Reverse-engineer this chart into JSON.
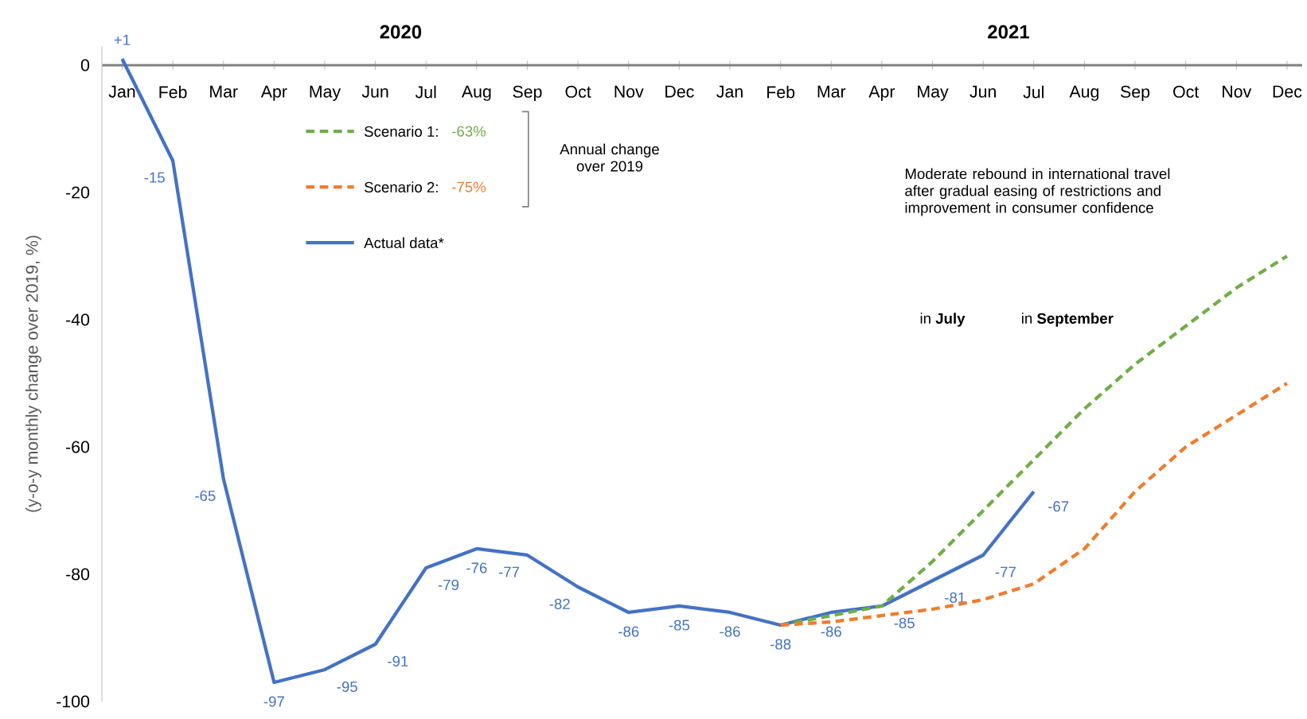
{
  "chart_data": {
    "type": "line",
    "categories": [
      "Jan",
      "Feb",
      "Mar",
      "Apr",
      "May",
      "Jun",
      "Jul",
      "Aug",
      "Sep",
      "Oct",
      "Nov",
      "Dec",
      "Jan",
      "Feb",
      "Mar",
      "Apr",
      "May",
      "Jun",
      "Jul",
      "Aug",
      "Sep",
      "Oct",
      "Nov",
      "Dec"
    ],
    "ylabel": "(y-o-y monthly change over 2019, %)",
    "ylim": [
      -100,
      3
    ],
    "yticks": [
      0,
      -20,
      -40,
      -60,
      -80,
      -100
    ],
    "series": [
      {
        "name": "Scenario 1:",
        "color": "#70ad47",
        "line_style": "dashed",
        "values": [
          null,
          null,
          null,
          null,
          null,
          null,
          null,
          null,
          null,
          null,
          null,
          null,
          null,
          -88,
          -86.5,
          -85,
          -78,
          -70,
          -62,
          -54,
          -47,
          -41,
          -35,
          -30
        ]
      },
      {
        "name": "Scenario 2:",
        "color": "#ed7d31",
        "line_style": "dashed",
        "values": [
          null,
          null,
          null,
          null,
          null,
          null,
          null,
          null,
          null,
          null,
          null,
          null,
          null,
          -88,
          -87.5,
          -86.5,
          -85.5,
          -84,
          -81.5,
          -76,
          -67,
          -60,
          -55,
          -50
        ]
      },
      {
        "name": "Actual data*",
        "color": "#4472c4",
        "line_style": "solid",
        "values": [
          1,
          -15,
          -65,
          -97,
          -95,
          -91,
          -79,
          -76,
          -77,
          -82,
          -86,
          -85,
          -86,
          -88,
          -86,
          -85,
          -81,
          -77,
          -67,
          null,
          null,
          null,
          null,
          null
        ],
        "value_labels": [
          "+1",
          "-15",
          "-65",
          "-97",
          "-95",
          "-91",
          "-79",
          "-76",
          "-77",
          "-82",
          "-86",
          "-85",
          "-86",
          "-88",
          "-86",
          "-85",
          "-81",
          "-77",
          "-67",
          null,
          null,
          null,
          null,
          null
        ]
      }
    ],
    "legend": "top left",
    "grid": false,
    "annotations": [
      "-63%",
      "-75%",
      "Annual change over 2019",
      "2020",
      "2021",
      "Moderate rebound in international travel after gradual easing of restrictions and improvement in consumer confidence",
      "in **July**",
      "in **September**"
    ]
  }
}
